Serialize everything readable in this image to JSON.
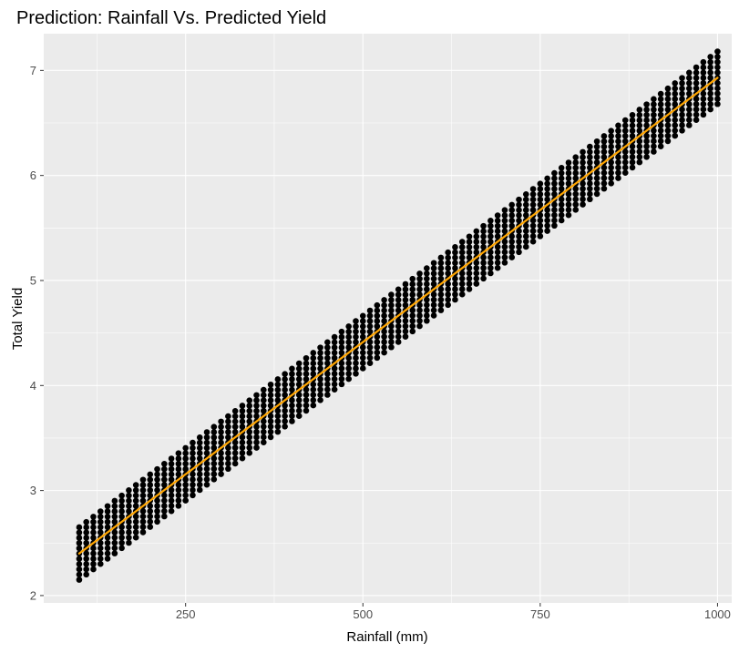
{
  "chart_data": {
    "type": "scatter",
    "title": "Prediction: Rainfall Vs. Predicted Yield",
    "xlabel": "Rainfall (mm)",
    "ylabel": "Total Yield",
    "xlim": [
      50,
      1020
    ],
    "ylim": [
      1.93,
      7.35
    ],
    "x_ticks": [
      250,
      500,
      750,
      1000
    ],
    "x_tick_labels": [
      "250",
      "500",
      "750",
      "1000"
    ],
    "y_ticks": [
      2,
      3,
      4,
      5,
      6,
      7
    ],
    "y_tick_labels": [
      "2",
      "3",
      "4",
      "5",
      "6",
      "7"
    ],
    "grid": true,
    "legend": "none",
    "points_x_range": [
      100,
      1000
    ],
    "points_x_step": 10,
    "points_spread": [
      -0.25,
      0.25
    ],
    "points_spread_step": 0.05,
    "series": [
      {
        "kind": "points",
        "color": "#000000"
      },
      {
        "kind": "fit-line",
        "color": "#FFA500",
        "x": [
          100,
          1000
        ],
        "y": [
          2.4,
          6.93
        ]
      }
    ]
  }
}
